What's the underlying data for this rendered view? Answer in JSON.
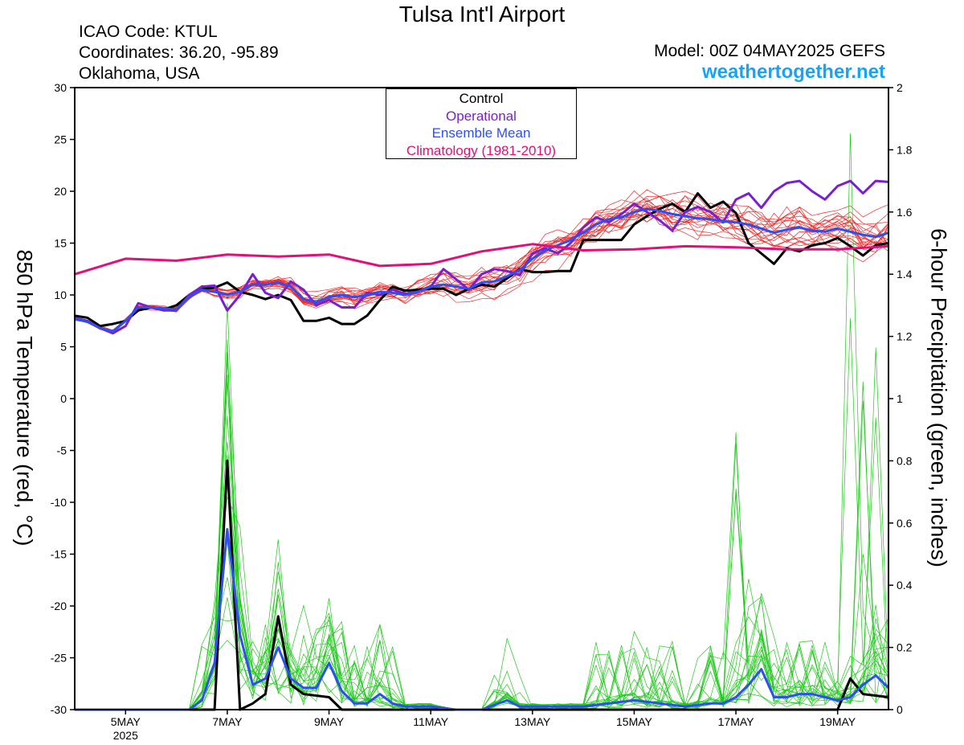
{
  "header": {
    "title": "Tulsa Int'l Airport",
    "icao": "ICAO Code: KTUL",
    "coordinates": "Coordinates: 36.20, -95.89",
    "region": "Oklahoma, USA",
    "model": "Model: 00Z 04MAY2025 GEFS",
    "site": "weathertogether.net"
  },
  "legend": {
    "control": "Control",
    "operational": "Operational",
    "ensemble_mean": "Ensemble Mean",
    "climatology": "Climatology (1981-2010)"
  },
  "colors": {
    "control": "#000000",
    "operational": "#7a1fd0",
    "ensemble_mean": "#2e4ff0",
    "climatology": "#e0107a",
    "members_temp": "#ee2a2a",
    "members_precip": "#22c81e",
    "site": "#1aa3f5"
  },
  "chart_data": {
    "type": "line",
    "x_unit": "days since 2025-05-04 00Z",
    "x_ticks": [
      {
        "x": 1,
        "label": "5MAY",
        "sublabel": "2025"
      },
      {
        "x": 3,
        "label": "7MAY"
      },
      {
        "x": 5,
        "label": "9MAY"
      },
      {
        "x": 7,
        "label": "11MAY"
      },
      {
        "x": 9,
        "label": "13MAY"
      },
      {
        "x": 11,
        "label": "15MAY"
      },
      {
        "x": 13,
        "label": "17MAY"
      },
      {
        "x": 15,
        "label": "19MAY"
      }
    ],
    "xlim": [
      0,
      16
    ],
    "ylabel_left": "850 hPa Temperature (red, °C)",
    "ylabel_right": "6-hour Precipitation (green, inches)",
    "ylim_left": [
      -30,
      30
    ],
    "ylim_right": [
      0,
      2
    ],
    "left_ticks": [
      30,
      25,
      20,
      15,
      10,
      5,
      0,
      -5,
      -10,
      -15,
      -20,
      -25,
      -30
    ],
    "right_ticks": [
      "2",
      "1.8",
      "1.6",
      "1.4",
      "1.2",
      "1",
      "0.8",
      "0.6",
      "0.4",
      "0.2",
      "0"
    ],
    "temperature_series": [
      {
        "name": "Control",
        "points": [
          [
            0,
            8
          ],
          [
            0.25,
            7.8
          ],
          [
            0.5,
            7
          ],
          [
            0.75,
            7.2
          ],
          [
            1,
            7.5
          ],
          [
            1.25,
            8.5
          ],
          [
            1.5,
            8.8
          ],
          [
            1.75,
            8.6
          ],
          [
            2,
            9
          ],
          [
            2.25,
            10
          ],
          [
            2.5,
            10.6
          ],
          [
            2.75,
            10.7
          ],
          [
            3,
            11.2
          ],
          [
            3.25,
            10.3
          ],
          [
            3.5,
            10
          ],
          [
            3.75,
            9.6
          ],
          [
            4,
            10
          ],
          [
            4.25,
            9.5
          ],
          [
            4.5,
            7.5
          ],
          [
            4.75,
            7.5
          ],
          [
            5,
            7.8
          ],
          [
            5.25,
            7.2
          ],
          [
            5.5,
            7.2
          ],
          [
            5.75,
            8
          ],
          [
            6,
            9.5
          ],
          [
            6.25,
            10.8
          ],
          [
            6.5,
            10.4
          ],
          [
            6.75,
            10.5
          ],
          [
            7,
            10.6
          ],
          [
            7.25,
            10.6
          ],
          [
            7.5,
            10.0
          ],
          [
            7.75,
            10.6
          ],
          [
            8,
            11
          ],
          [
            8.25,
            10.8
          ],
          [
            8.5,
            11.6
          ],
          [
            8.75,
            12.5
          ],
          [
            9,
            12.2
          ],
          [
            9.25,
            12.2
          ],
          [
            9.5,
            12.3
          ],
          [
            9.75,
            12.3
          ],
          [
            10,
            15.3
          ],
          [
            10.25,
            15.3
          ],
          [
            10.5,
            15.3
          ],
          [
            10.75,
            15.3
          ],
          [
            11,
            16.8
          ],
          [
            11.25,
            17.6
          ],
          [
            11.5,
            18.3
          ],
          [
            11.75,
            18.8
          ],
          [
            12,
            18
          ],
          [
            12.25,
            19.8
          ],
          [
            12.5,
            18.4
          ],
          [
            12.75,
            19
          ],
          [
            13,
            17.9
          ],
          [
            13.25,
            15
          ],
          [
            13.5,
            14
          ],
          [
            13.75,
            13
          ],
          [
            14,
            14.5
          ],
          [
            14.25,
            14.2
          ],
          [
            14.5,
            14.8
          ],
          [
            14.75,
            15
          ],
          [
            15,
            15.5
          ],
          [
            15.25,
            14.7
          ],
          [
            15.5,
            13.8
          ],
          [
            15.75,
            14.8
          ],
          [
            16,
            15
          ]
        ]
      },
      {
        "name": "Operational",
        "points": [
          [
            0,
            7.8
          ],
          [
            0.25,
            7.5
          ],
          [
            0.5,
            6.8
          ],
          [
            0.75,
            6.3
          ],
          [
            1,
            7
          ],
          [
            1.25,
            9.2
          ],
          [
            1.5,
            8.8
          ],
          [
            1.75,
            8.5
          ],
          [
            2,
            8.5
          ],
          [
            2.25,
            10
          ],
          [
            2.5,
            10.8
          ],
          [
            2.75,
            10.9
          ],
          [
            3,
            8.5
          ],
          [
            3.25,
            10
          ],
          [
            3.5,
            12
          ],
          [
            3.75,
            10.2
          ],
          [
            4,
            9.7
          ],
          [
            4.25,
            11.3
          ],
          [
            4.5,
            10.5
          ],
          [
            4.75,
            9
          ],
          [
            5,
            9.5
          ],
          [
            5.25,
            8.8
          ],
          [
            5.5,
            8.8
          ],
          [
            5.75,
            10.2
          ],
          [
            6,
            10
          ],
          [
            6.25,
            10.5
          ],
          [
            6.5,
            10.1
          ],
          [
            6.75,
            10.3
          ],
          [
            7,
            10.8
          ],
          [
            7.25,
            12.5
          ],
          [
            7.5,
            11.5
          ],
          [
            7.75,
            10.5
          ],
          [
            8,
            12
          ],
          [
            8.25,
            12.5
          ],
          [
            8.5,
            12.3
          ],
          [
            8.75,
            11.9
          ],
          [
            9,
            14
          ],
          [
            9.25,
            14.5
          ],
          [
            9.5,
            14
          ],
          [
            9.75,
            15
          ],
          [
            10,
            16.5
          ],
          [
            10.25,
            17.5
          ],
          [
            10.5,
            17
          ],
          [
            10.75,
            17.8
          ],
          [
            11,
            18.8
          ],
          [
            11.25,
            18
          ],
          [
            11.5,
            17.2
          ],
          [
            11.75,
            16.2
          ],
          [
            12,
            18
          ],
          [
            12.25,
            18.5
          ],
          [
            12.5,
            18
          ],
          [
            12.75,
            17
          ],
          [
            13,
            19.2
          ],
          [
            13.25,
            19.8
          ],
          [
            13.5,
            18.4
          ],
          [
            13.75,
            20
          ],
          [
            14,
            20.8
          ],
          [
            14.25,
            21
          ],
          [
            14.5,
            20
          ],
          [
            14.75,
            19.2
          ],
          [
            15,
            20.5
          ],
          [
            15.25,
            21
          ],
          [
            15.5,
            19.8
          ],
          [
            15.75,
            21
          ],
          [
            16,
            20.9
          ]
        ]
      },
      {
        "name": "Ensemble Mean",
        "points": [
          [
            0,
            7.7
          ],
          [
            0.25,
            7.4
          ],
          [
            0.5,
            6.8
          ],
          [
            0.75,
            6.5
          ],
          [
            1,
            7.5
          ],
          [
            1.25,
            8.8
          ],
          [
            1.5,
            8.8
          ],
          [
            1.75,
            8.7
          ],
          [
            2,
            8.6
          ],
          [
            2.25,
            9.8
          ],
          [
            2.5,
            10.5
          ],
          [
            2.75,
            10.3
          ],
          [
            3,
            10
          ],
          [
            3.25,
            10.3
          ],
          [
            3.5,
            11
          ],
          [
            3.75,
            11
          ],
          [
            4,
            11.2
          ],
          [
            4.25,
            10.8
          ],
          [
            4.5,
            9.6
          ],
          [
            4.75,
            9.3
          ],
          [
            5,
            9.8
          ],
          [
            5.25,
            10
          ],
          [
            5.5,
            9.8
          ],
          [
            5.75,
            10
          ],
          [
            6,
            10.3
          ],
          [
            6.25,
            10.2
          ],
          [
            6.5,
            10
          ],
          [
            6.75,
            10.3
          ],
          [
            7,
            10.8
          ],
          [
            7.25,
            11
          ],
          [
            7.5,
            10.8
          ],
          [
            7.75,
            10.6
          ],
          [
            8,
            11.2
          ],
          [
            8.25,
            11.3
          ],
          [
            8.5,
            11.8
          ],
          [
            8.75,
            12.4
          ],
          [
            9,
            13.5
          ],
          [
            9.25,
            14.3
          ],
          [
            9.5,
            14.8
          ],
          [
            9.75,
            15.3
          ],
          [
            10,
            16
          ],
          [
            10.25,
            16.8
          ],
          [
            10.5,
            17.3
          ],
          [
            10.75,
            17.5
          ],
          [
            11,
            18
          ],
          [
            11.25,
            18.3
          ],
          [
            11.5,
            18.1
          ],
          [
            11.75,
            17.8
          ],
          [
            12,
            17.6
          ],
          [
            12.25,
            17.4
          ],
          [
            12.5,
            17.3
          ],
          [
            12.75,
            17.1
          ],
          [
            13,
            17
          ],
          [
            13.25,
            16.8
          ],
          [
            13.5,
            16.4
          ],
          [
            13.75,
            16
          ],
          [
            14,
            16.3
          ],
          [
            14.25,
            16.5
          ],
          [
            14.5,
            16.2
          ],
          [
            14.75,
            16.1
          ],
          [
            15,
            16.4
          ],
          [
            15.25,
            16.1
          ],
          [
            15.5,
            15.8
          ],
          [
            15.75,
            15.6
          ],
          [
            16,
            16
          ]
        ]
      },
      {
        "name": "Climatology (1981-2010)",
        "points": [
          [
            0,
            12
          ],
          [
            1,
            13.5
          ],
          [
            2,
            13.3
          ],
          [
            3,
            13.9
          ],
          [
            4,
            13.7
          ],
          [
            5,
            13.9
          ],
          [
            6,
            12.8
          ],
          [
            7,
            13
          ],
          [
            8,
            14.2
          ],
          [
            9,
            14.9
          ],
          [
            10,
            14.3
          ],
          [
            11,
            14.4
          ],
          [
            12,
            14.7
          ],
          [
            13,
            14.6
          ],
          [
            14,
            14.4
          ],
          [
            15,
            14.4
          ],
          [
            16,
            14.7
          ]
        ]
      }
    ],
    "precipitation_series": [
      {
        "name": "Control",
        "points": [
          [
            0,
            0
          ],
          [
            2.75,
            0
          ],
          [
            3,
            0.8
          ],
          [
            3.25,
            0
          ],
          [
            3.5,
            0.02
          ],
          [
            3.75,
            0.05
          ],
          [
            4,
            0.3
          ],
          [
            4.25,
            0.08
          ],
          [
            4.5,
            0.05
          ],
          [
            5,
            0.04
          ],
          [
            5.25,
            0
          ],
          [
            15,
            0
          ],
          [
            15.25,
            0.1
          ],
          [
            15.5,
            0.05
          ],
          [
            16,
            0.04
          ]
        ]
      },
      {
        "name": "Ensemble Mean",
        "points": [
          [
            0,
            0
          ],
          [
            2.25,
            0
          ],
          [
            2.5,
            0.03
          ],
          [
            2.75,
            0.15
          ],
          [
            3,
            0.58
          ],
          [
            3.25,
            0.24
          ],
          [
            3.5,
            0.08
          ],
          [
            3.75,
            0.1
          ],
          [
            4,
            0.2
          ],
          [
            4.25,
            0.1
          ],
          [
            4.5,
            0.07
          ],
          [
            4.75,
            0.07
          ],
          [
            5,
            0.15
          ],
          [
            5.25,
            0.06
          ],
          [
            5.5,
            0.02
          ],
          [
            5.75,
            0.02
          ],
          [
            6,
            0.05
          ],
          [
            6.25,
            0.02
          ],
          [
            6.5,
            0.01
          ],
          [
            7,
            0.01
          ],
          [
            7.5,
            0
          ],
          [
            8,
            0
          ],
          [
            8.5,
            0.03
          ],
          [
            8.75,
            0.01
          ],
          [
            9,
            0.01
          ],
          [
            9.5,
            0.01
          ],
          [
            9.75,
            0.01
          ],
          [
            10,
            0.01
          ],
          [
            10.5,
            0.02
          ],
          [
            11,
            0.03
          ],
          [
            11.5,
            0.02
          ],
          [
            12,
            0.01
          ],
          [
            12.5,
            0.02
          ],
          [
            12.75,
            0.02
          ],
          [
            13,
            0.04
          ],
          [
            13.25,
            0.08
          ],
          [
            13.5,
            0.13
          ],
          [
            13.75,
            0.04
          ],
          [
            14,
            0.04
          ],
          [
            14.25,
            0.05
          ],
          [
            14.5,
            0.05
          ],
          [
            15,
            0.03
          ],
          [
            15.25,
            0.04
          ],
          [
            15.5,
            0.08
          ],
          [
            15.75,
            0.11
          ],
          [
            16,
            0.07
          ]
        ]
      }
    ]
  }
}
